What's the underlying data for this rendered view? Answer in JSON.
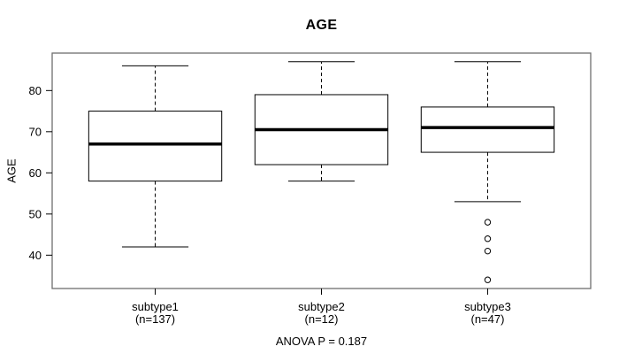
{
  "chart_data": {
    "type": "boxplot",
    "title": "AGE",
    "ylabel": "AGE",
    "footer": "ANOVA P = 0.187",
    "ylim": [
      31.9,
      89.1
    ],
    "yticks": [
      40,
      50,
      60,
      70,
      80
    ],
    "grid": false,
    "legend": "none",
    "categories": [
      {
        "label": "subtype1",
        "n": 137,
        "n_label": "(n=137)",
        "stats": {
          "whisker_low": 42,
          "q1": 58,
          "median": 67,
          "q3": 75,
          "whisker_high": 86
        },
        "outliers": []
      },
      {
        "label": "subtype2",
        "n": 12,
        "n_label": "(n=12)",
        "stats": {
          "whisker_low": 58,
          "q1": 62,
          "median": 70.5,
          "q3": 79,
          "whisker_high": 87
        },
        "outliers": []
      },
      {
        "label": "subtype3",
        "n": 47,
        "n_label": "(n=47)",
        "stats": {
          "whisker_low": 53,
          "q1": 65,
          "median": 71,
          "q3": 76,
          "whisker_high": 87
        },
        "outliers": [
          48,
          44,
          41,
          34
        ]
      }
    ],
    "colors": {
      "line": "#000000",
      "frame": "#6e6e6e",
      "background": "#ffffff"
    }
  }
}
